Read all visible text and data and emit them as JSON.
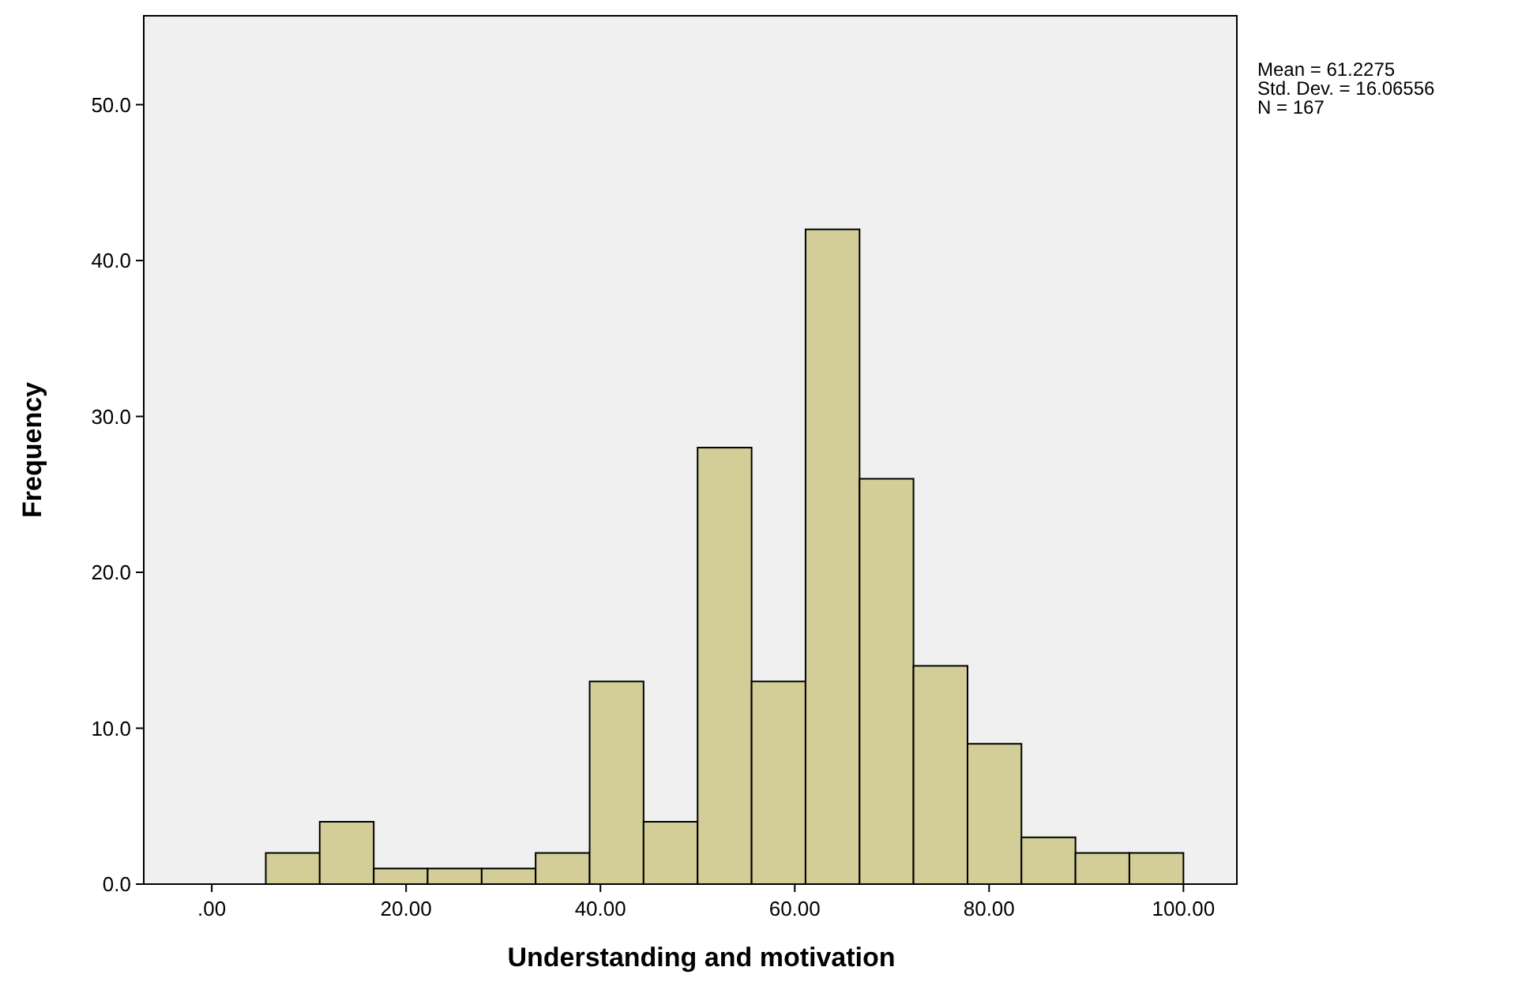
{
  "chart_data": {
    "type": "histogram",
    "xlabel": "Understanding and motivation",
    "ylabel": "Frequency",
    "bins": [
      5.56,
      11.11,
      16.67,
      22.22,
      27.78,
      33.33,
      38.89,
      44.44,
      50,
      55.56,
      61.11,
      66.67,
      72.22,
      77.78,
      83.33,
      88.89,
      94.44,
      100
    ],
    "values": [
      2,
      4,
      1,
      1,
      1,
      2,
      13,
      4,
      28,
      13,
      42,
      26,
      14,
      9,
      3,
      2,
      2
    ],
    "color": "#d3ce97",
    "xlim": [
      -7,
      105.5
    ],
    "xticks": [
      {
        "value": 0,
        "label": ".00"
      },
      {
        "value": 20,
        "label": "20.00"
      },
      {
        "value": 40,
        "label": "40.00"
      },
      {
        "value": 60,
        "label": "60.00"
      },
      {
        "value": 80,
        "label": "80.00"
      },
      {
        "value": 100,
        "label": "100.00"
      }
    ],
    "ylim": [
      0,
      55.7
    ],
    "yticks": [
      {
        "value": 0,
        "label": "0.0"
      },
      {
        "value": 10,
        "label": "10.0"
      },
      {
        "value": 20,
        "label": "20.0"
      },
      {
        "value": 30,
        "label": "30.0"
      },
      {
        "value": 40,
        "label": "40.0"
      },
      {
        "value": 50,
        "label": "50.0"
      }
    ],
    "annotations": [
      "Mean = 61.2275",
      "Std. Dev. = 16.06556",
      "N = 167"
    ]
  }
}
